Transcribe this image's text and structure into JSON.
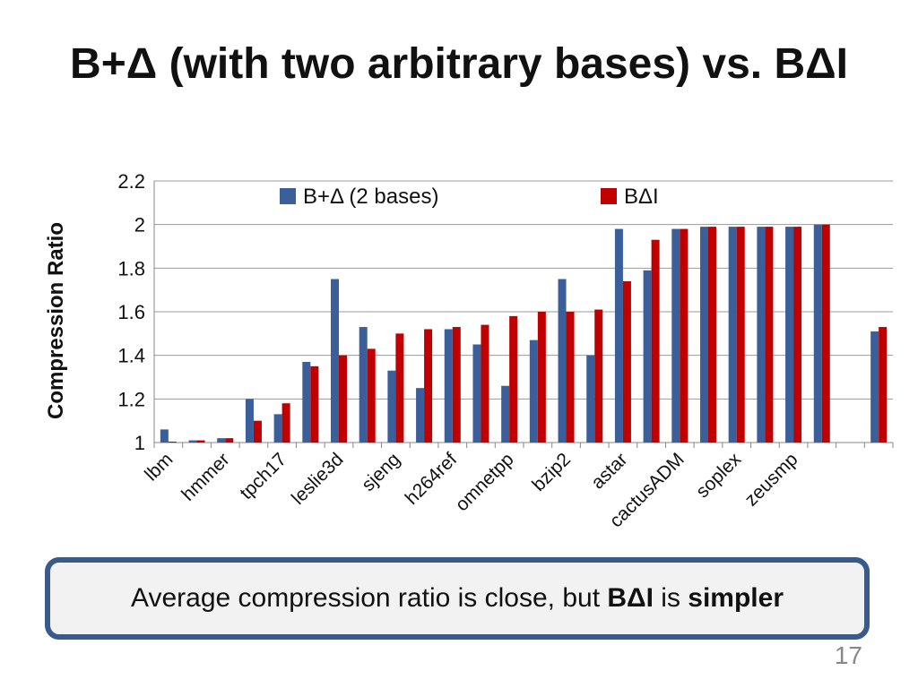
{
  "slide": {
    "title": "B+Δ (with two arbitrary bases) vs. BΔI",
    "slide_number": "17"
  },
  "callout": {
    "text_prefix": "Average compression ratio is close, but ",
    "bold_1": "BΔI",
    "text_middle": " is ",
    "bold_2": "simpler"
  },
  "colors": {
    "series_1": "#3a5f9a",
    "series_2": "#c00000",
    "gridline": "#9a9a9a",
    "callout_border": "#3a5a8c"
  },
  "chart_data": {
    "type": "bar",
    "title": "",
    "xlabel": "",
    "ylabel": "Compression Ratio",
    "ylim": [
      1,
      2.2
    ],
    "yticks": [
      "1",
      "1.2",
      "1.4",
      "1.6",
      "1.8",
      "2",
      "2.2"
    ],
    "grid": true,
    "legend_position": "top",
    "categories": [
      "lbm",
      "",
      "hmmer",
      "",
      "tpch17",
      "",
      "leslie3d",
      "",
      "sjeng",
      "",
      "h264ref",
      "",
      "omnetpp",
      "",
      "bzip2",
      "",
      "astar",
      "",
      "cactusADM",
      "",
      "soplex",
      "",
      "zeusmp",
      "",
      "",
      ""
    ],
    "series": [
      {
        "name": "B+Δ (2 bases)",
        "values": [
          1.06,
          1.01,
          1.02,
          1.2,
          1.13,
          1.37,
          1.75,
          1.53,
          1.33,
          1.25,
          1.52,
          1.45,
          1.26,
          1.47,
          1.75,
          1.4,
          1.98,
          1.79,
          1.98,
          1.99,
          1.99,
          1.99,
          1.99,
          2.0,
          null,
          1.51
        ]
      },
      {
        "name": "BΔI",
        "values": [
          1.0,
          1.01,
          1.02,
          1.1,
          1.18,
          1.35,
          1.4,
          1.43,
          1.5,
          1.52,
          1.53,
          1.54,
          1.58,
          1.6,
          1.6,
          1.61,
          1.74,
          1.93,
          1.98,
          1.99,
          1.99,
          1.99,
          1.99,
          2.0,
          null,
          1.53
        ]
      }
    ]
  }
}
